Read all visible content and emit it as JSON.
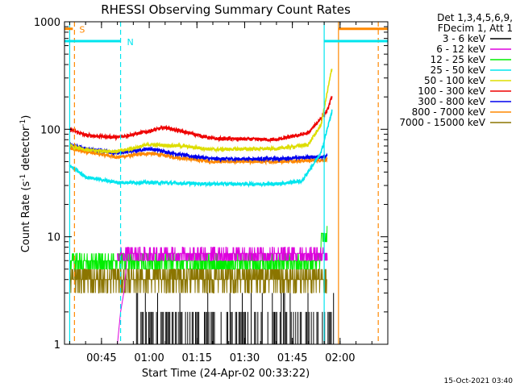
{
  "chart_data": {
    "type": "line",
    "title": "RHESSI Observing Summary Count Rates",
    "xlabel": "Start Time (24-Apr-02 00:33:22)",
    "ylabel": "Count Rate (s",
    "ylabel_sup": "-1",
    "ylabel_mid": " detector",
    "ylabel_sup2": "-1",
    "ylabel_end": ")",
    "y_scale": "log",
    "ylim": [
      1,
      1000
    ],
    "xlim_minutes": [
      33.37,
      135.0
    ],
    "x_tick_minutes": [
      45,
      60,
      75,
      90,
      105,
      120
    ],
    "x_tick_labels": [
      "00:45",
      "01:00",
      "01:15",
      "01:30",
      "01:45",
      "02:00"
    ],
    "y_tick_values": [
      1,
      10,
      100,
      1000
    ],
    "y_tick_labels": [
      "1",
      "10",
      "100",
      "1000"
    ],
    "legend_header": [
      "Det 1,3,4,5,6,9,",
      "FDecim 1, Att 1"
    ],
    "legend_placement": "right",
    "series": [
      {
        "name": "3 - 6 keV",
        "color": "#000000"
      },
      {
        "name": "6 - 12 keV",
        "color": "#dd00dd"
      },
      {
        "name": "12 - 25 keV",
        "color": "#00ee00"
      },
      {
        "name": "25 - 50 keV",
        "color": "#00e5ee"
      },
      {
        "name": "50 - 100 keV",
        "color": "#dddd00"
      },
      {
        "name": "100 - 300 keV",
        "color": "#ee0000"
      },
      {
        "name": "300 - 800 keV",
        "color": "#0000ee"
      },
      {
        "name": "800 - 7000 keV",
        "color": "#ff8800"
      },
      {
        "name": "7000 - 15000 keV",
        "color": "#8b7500"
      }
    ],
    "profiles": [
      {
        "series": 7,
        "min": [
          [
            35,
            66
          ],
          [
            40,
            62
          ],
          [
            50,
            55
          ],
          [
            60,
            60
          ],
          [
            70,
            54
          ],
          [
            80,
            50
          ],
          [
            100,
            50
          ],
          [
            116,
            52
          ]
        ]
      },
      {
        "series": 6,
        "min": [
          [
            35,
            72
          ],
          [
            40,
            66
          ],
          [
            50,
            60
          ],
          [
            60,
            66
          ],
          [
            70,
            58
          ],
          [
            80,
            53
          ],
          [
            100,
            53
          ],
          [
            116,
            56
          ]
        ]
      },
      {
        "series": 5,
        "min": [
          [
            35,
            100
          ],
          [
            40,
            88
          ],
          [
            50,
            84
          ],
          [
            60,
            96
          ],
          [
            65,
            104
          ],
          [
            70,
            96
          ],
          [
            80,
            82
          ],
          [
            100,
            80
          ],
          [
            110,
            92
          ],
          [
            116,
            150
          ],
          [
            117.5,
            205
          ]
        ]
      },
      {
        "series": 4,
        "min": [
          [
            35,
            70
          ],
          [
            40,
            64
          ],
          [
            50,
            62
          ],
          [
            60,
            72
          ],
          [
            70,
            70
          ],
          [
            80,
            65
          ],
          [
            100,
            66
          ],
          [
            110,
            72
          ],
          [
            114,
            110
          ],
          [
            117.5,
            380
          ]
        ]
      },
      {
        "series": 3,
        "min": [
          [
            35,
            46
          ],
          [
            40,
            36
          ],
          [
            50,
            32
          ],
          [
            60,
            32
          ],
          [
            80,
            31
          ],
          [
            100,
            31
          ],
          [
            108,
            33
          ],
          [
            114,
            60
          ],
          [
            117.5,
            150
          ]
        ]
      }
    ],
    "vertical_lines": [
      {
        "minute": 35,
        "color": "#00e5ee",
        "style": "solid"
      },
      {
        "minute": 36.5,
        "color": "#ff8800",
        "style": "dashed"
      },
      {
        "minute": 51,
        "color": "#00e5ee",
        "style": "dashed"
      },
      {
        "minute": 115,
        "color": "#00e5ee",
        "style": "solid"
      },
      {
        "minute": 119.5,
        "color": "#ff8800",
        "style": "solid"
      },
      {
        "minute": 132,
        "color": "#ff8800",
        "style": "dashed"
      }
    ],
    "segments": [
      {
        "label": "S",
        "color": "#ff8800",
        "minute_from": 33.4,
        "minute_to": 36,
        "level": 860
      },
      {
        "label": "N",
        "color": "#00e5ee",
        "minute_from": 33.4,
        "minute_to": 51,
        "level": 660
      },
      {
        "label": "",
        "color": "#ff8800",
        "minute_from": 119.5,
        "minute_to": 135,
        "level": 860
      },
      {
        "label": "",
        "color": "#00e5ee",
        "minute_from": 115,
        "minute_to": 135,
        "level": 660
      }
    ],
    "footer_date": "15-Oct-2021 03:40"
  }
}
